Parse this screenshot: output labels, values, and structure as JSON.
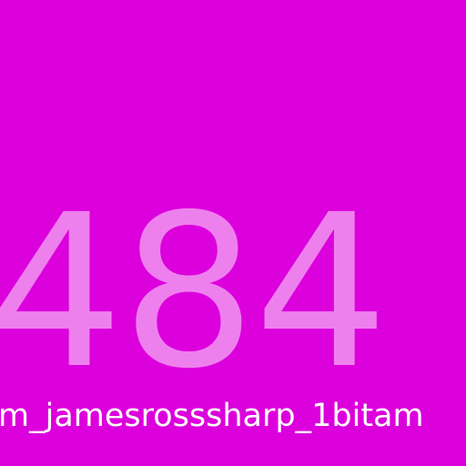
{
  "tile": {
    "number": "484",
    "caption": "m_jamesrosssharp_1bitam"
  },
  "colors": {
    "background": "#dc00dc",
    "number": "#ee80ee",
    "caption": "#ffffff"
  }
}
